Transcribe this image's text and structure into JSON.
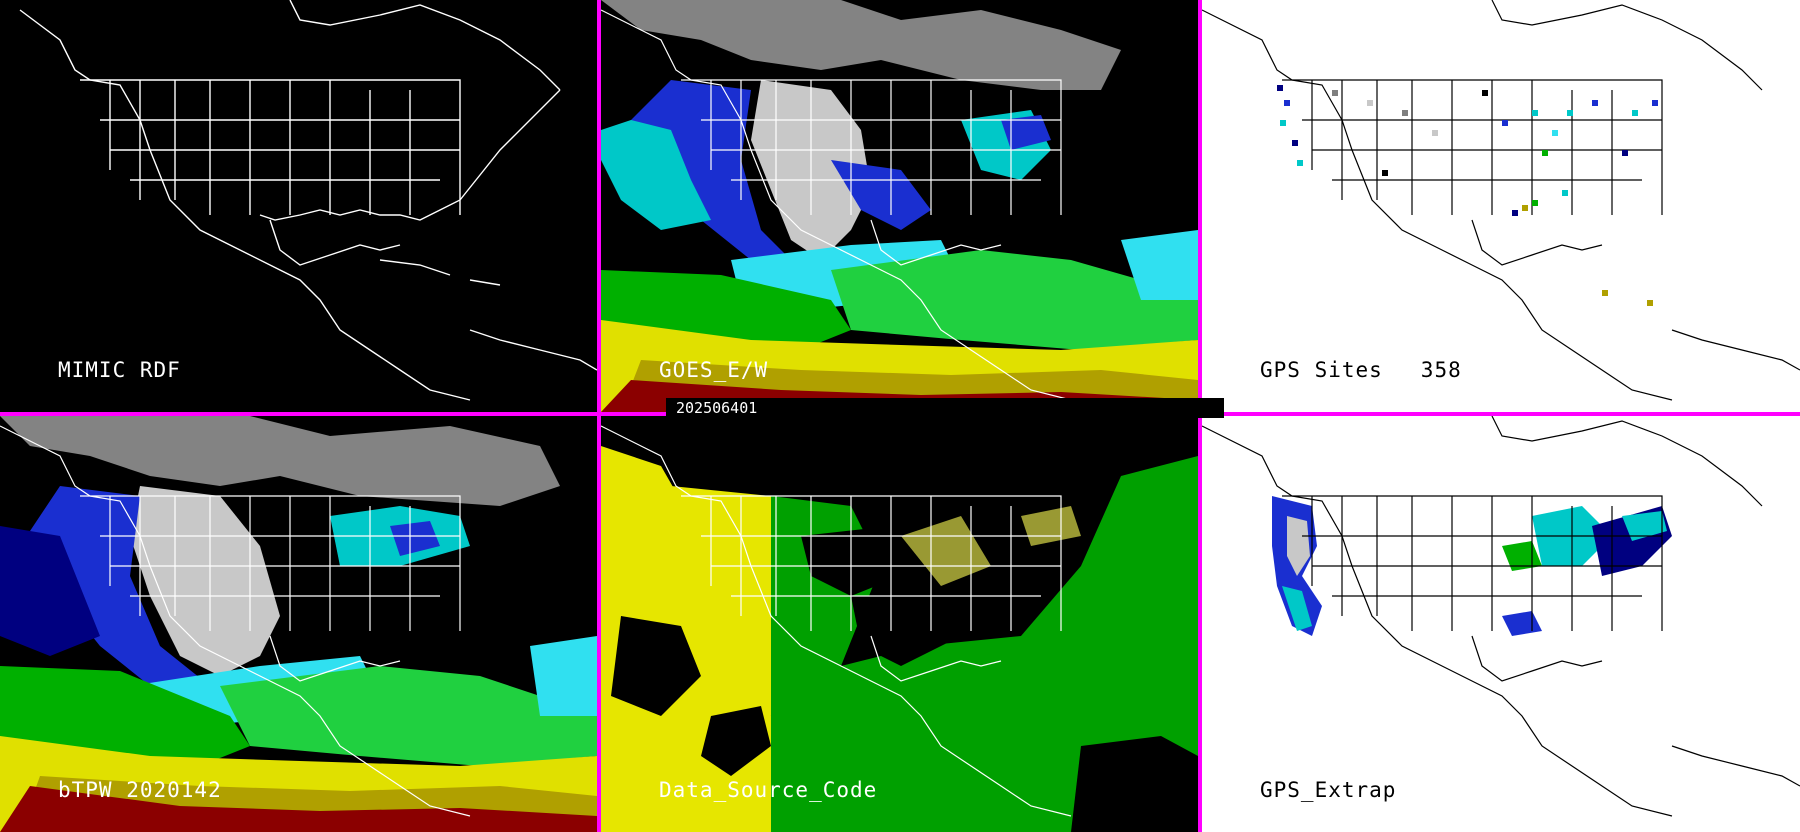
{
  "panels": {
    "mimic_rdf": {
      "label": "MIMIC RDF"
    },
    "goes_ew": {
      "label": "GOES_E/W"
    },
    "gps_sites": {
      "label": "GPS Sites",
      "count": "358"
    },
    "btpw": {
      "label": "bTPW 2020142"
    },
    "data_source": {
      "label": "Data_Source_Code"
    },
    "gps_extrap": {
      "label": "GPS_Extrap"
    }
  },
  "timestamp": "202506401",
  "colors": {
    "divider": "#ff00ff",
    "outline_dark": "#ffffff",
    "outline_light": "#000000",
    "tpw_palette": [
      "#c8c8c8",
      "#7f7f7f",
      "#000080",
      "#1a2fd0",
      "#00c8c8",
      "#30e0f0",
      "#00b000",
      "#40e040",
      "#e0e000",
      "#b0a000",
      "#8b0000",
      "#cc1010"
    ],
    "source_yellow": "#e6e600",
    "source_green": "#00a000",
    "source_olive": "#999933"
  }
}
